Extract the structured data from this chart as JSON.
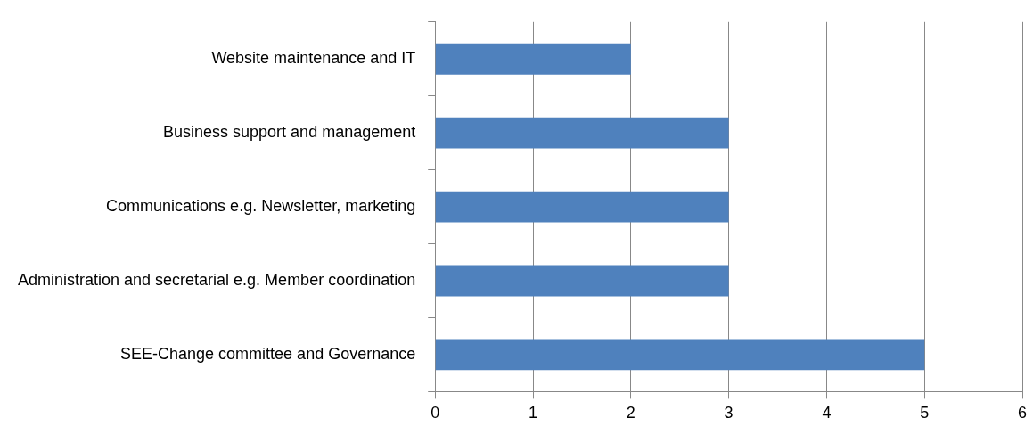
{
  "chart_data": {
    "type": "bar",
    "orientation": "horizontal",
    "categories": [
      "Website maintenance and IT",
      "Business support and management",
      "Communications e.g. Newsletter, marketing",
      "Administration and secretarial e.g. Member coordination",
      "SEE-Change committee and Governance"
    ],
    "values": [
      2,
      3,
      3,
      3,
      5
    ],
    "color": "#4f81bd",
    "xlim": [
      0,
      6
    ],
    "xticks": [
      0,
      1,
      2,
      3,
      4,
      5,
      6
    ],
    "grid": "x",
    "legend": false
  }
}
